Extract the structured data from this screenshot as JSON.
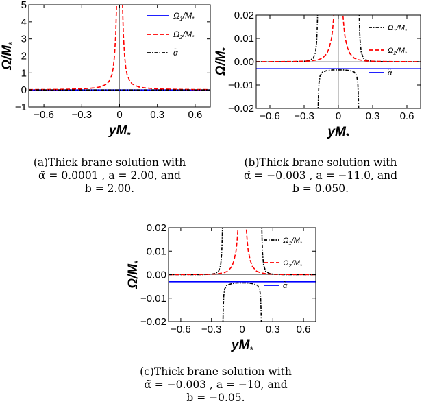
{
  "captions": {
    "a": {
      "line1": "(a)Thick brane solution with",
      "line2": "α̃ = 0.0001 , a = 2.00, and",
      "line3": "b = 2.00."
    },
    "b": {
      "line1": "(b)Thick brane solution with",
      "line2": "α̃ = −0.003 , a = −11.0, and",
      "line3": "b = 0.050."
    },
    "c": {
      "line1": "(c)Thick brane solution with",
      "line2": "α̃ = −0.003 , a = −10, and",
      "line3": "b = −0.05."
    }
  },
  "colors": {
    "omega1": "#0000ff",
    "omega2": "#ff0000",
    "alpha": "#000000",
    "axis": "#888888",
    "frame": "#000000"
  },
  "chart_data": [
    {
      "id": "a",
      "type": "line",
      "xlabel": "yM*",
      "ylabel": "Ω/M*",
      "xlim": [
        -0.72,
        0.72
      ],
      "ylim": [
        -1,
        5
      ],
      "xticks": [
        "-0.6",
        "-0.3",
        "0",
        "0.3",
        "0.6"
      ],
      "yticks": [
        "-1",
        "0",
        "1",
        "2",
        "3",
        "4",
        "5"
      ],
      "legend_position": "top-right",
      "series": [
        {
          "name": "Ω1/M*",
          "color": "#0000ff",
          "dash": "solid",
          "x": [
            -0.72,
            0.72
          ],
          "y": [
            0.0,
            0.0
          ]
        },
        {
          "name": "Ω2/M*",
          "color": "#ff0000",
          "dash": "dashed",
          "x": [
            -0.72,
            -0.5,
            -0.3,
            -0.2,
            -0.15,
            -0.1,
            -0.08,
            -0.06,
            -0.05,
            -0.04,
            -0.03,
            -0.02,
            0.02,
            0.03,
            0.04,
            0.05,
            0.06,
            0.08,
            0.1,
            0.15,
            0.2,
            0.3,
            0.5,
            0.72
          ],
          "y": [
            0.02,
            0.03,
            0.06,
            0.12,
            0.18,
            0.35,
            0.55,
            0.9,
            1.3,
            2.0,
            3.3,
            6.0,
            6.0,
            3.3,
            2.0,
            1.3,
            0.9,
            0.55,
            0.35,
            0.18,
            0.12,
            0.06,
            0.03,
            0.02
          ]
        },
        {
          "name": "α̃",
          "color": "#000000",
          "dash": "dashdot",
          "x": [
            -0.72,
            0.72
          ],
          "y": [
            0.0001,
            0.0001
          ]
        }
      ]
    },
    {
      "id": "b",
      "type": "line",
      "xlabel": "yM*",
      "ylabel": "Ω/M*",
      "xlim": [
        -0.72,
        0.72
      ],
      "ylim": [
        -0.02,
        0.02
      ],
      "xticks": [
        "-0.6",
        "-0.3",
        "0",
        "0.3",
        "0.6"
      ],
      "yticks": [
        "-0.02",
        "-0.01",
        "0.00",
        "0.01",
        "0.02"
      ],
      "legend_position": "top-right",
      "series": [
        {
          "name": "Ω1/M*",
          "color": "#000000",
          "dash": "dashdot",
          "x": [
            -0.72,
            -0.4,
            -0.3,
            -0.25,
            -0.22,
            -0.2,
            -0.19,
            -0.185,
            -0.18
          ],
          "y": [
            0.0,
            0.0,
            0.0002,
            0.0006,
            0.0015,
            0.004,
            0.009,
            0.015,
            0.025
          ],
          "x2": [
            0.18,
            0.185,
            0.19,
            0.2,
            0.22,
            0.25,
            0.3,
            0.4,
            0.72
          ],
          "y2": [
            0.025,
            0.015,
            0.009,
            0.004,
            0.0015,
            0.0006,
            0.0002,
            0.0,
            0.0
          ]
        },
        {
          "name": "Ω2/M*",
          "color": "#ff0000",
          "dash": "dashed",
          "x": [
            -0.72,
            -0.4,
            -0.25,
            -0.18,
            -0.14,
            -0.1,
            -0.08,
            -0.06,
            -0.05,
            -0.04,
            -0.03,
            0.03,
            0.04,
            0.05,
            0.06,
            0.08,
            0.1,
            0.14,
            0.18,
            0.25,
            0.4,
            0.72
          ],
          "y": [
            0.0,
            0.0001,
            0.0003,
            0.0008,
            0.0015,
            0.0035,
            0.006,
            0.01,
            0.014,
            0.02,
            0.03,
            0.03,
            0.02,
            0.014,
            0.01,
            0.006,
            0.0035,
            0.0015,
            0.0008,
            0.0003,
            0.0001,
            0.0
          ]
        },
        {
          "name": "α̃",
          "color": "#0000ff",
          "dash": "solid",
          "x": [
            -0.72,
            0.72
          ],
          "y": [
            -0.003,
            -0.003
          ]
        },
        {
          "name": "",
          "color": "#000000",
          "dash": "dashdot",
          "x": [
            -0.18,
            -0.175,
            -0.17,
            -0.16,
            -0.14,
            -0.1,
            -0.05,
            0.0,
            0.05,
            0.1,
            0.14,
            0.16,
            0.17,
            0.175,
            0.18
          ],
          "y": [
            -0.025,
            -0.015,
            -0.009,
            -0.006,
            -0.0045,
            -0.0038,
            -0.0035,
            -0.0035,
            -0.0035,
            -0.0038,
            -0.0045,
            -0.006,
            -0.009,
            -0.015,
            -0.025
          ]
        }
      ]
    },
    {
      "id": "c",
      "type": "line",
      "xlabel": "yM*",
      "ylabel": "Ω/M*",
      "xlim": [
        -0.72,
        0.72
      ],
      "ylim": [
        -0.02,
        0.02
      ],
      "xticks": [
        "-0.6",
        "-0.3",
        "0",
        "0.3",
        "0.6"
      ],
      "yticks": [
        "-0.02",
        "-0.01",
        "0.00",
        "0.01",
        "0.02"
      ],
      "legend_position": "top-right",
      "series": [
        {
          "name": "Ω1/M*",
          "color": "#000000",
          "dash": "dashdot",
          "x": [
            -0.72,
            -0.4,
            -0.3,
            -0.26,
            -0.23,
            -0.21,
            -0.2,
            -0.195,
            -0.19
          ],
          "y": [
            0.0,
            0.0,
            0.0002,
            0.0006,
            0.0015,
            0.004,
            0.009,
            0.015,
            0.025
          ],
          "x2": [
            0.19,
            0.195,
            0.2,
            0.21,
            0.23,
            0.26,
            0.3,
            0.4,
            0.72
          ],
          "y2": [
            0.025,
            0.015,
            0.009,
            0.004,
            0.0015,
            0.0006,
            0.0002,
            0.0,
            0.0
          ]
        },
        {
          "name": "Ω2/M*",
          "color": "#ff0000",
          "dash": "dashed",
          "x": [
            -0.72,
            -0.4,
            -0.25,
            -0.18,
            -0.14,
            -0.1,
            -0.08,
            -0.06,
            -0.05,
            -0.04,
            -0.03,
            0.03,
            0.04,
            0.05,
            0.06,
            0.08,
            0.1,
            0.14,
            0.18,
            0.25,
            0.4,
            0.72
          ],
          "y": [
            0.0,
            0.0001,
            0.0003,
            0.0008,
            0.0015,
            0.0035,
            0.006,
            0.01,
            0.014,
            0.02,
            0.03,
            0.03,
            0.02,
            0.014,
            0.01,
            0.006,
            0.0035,
            0.0015,
            0.0008,
            0.0003,
            0.0001,
            0.0
          ]
        },
        {
          "name": "α̃",
          "color": "#0000ff",
          "dash": "solid",
          "x": [
            -0.72,
            0.72
          ],
          "y": [
            -0.003,
            -0.003
          ]
        },
        {
          "name": "",
          "color": "#000000",
          "dash": "dashdot",
          "x": [
            -0.19,
            -0.185,
            -0.18,
            -0.17,
            -0.15,
            -0.1,
            -0.05,
            0.0,
            0.05,
            0.1,
            0.15,
            0.17,
            0.18,
            0.185,
            0.19
          ],
          "y": [
            -0.025,
            -0.015,
            -0.009,
            -0.006,
            -0.0045,
            -0.0038,
            -0.0035,
            -0.0035,
            -0.0035,
            -0.0038,
            -0.0045,
            -0.006,
            -0.009,
            -0.015,
            -0.025
          ]
        }
      ]
    }
  ]
}
